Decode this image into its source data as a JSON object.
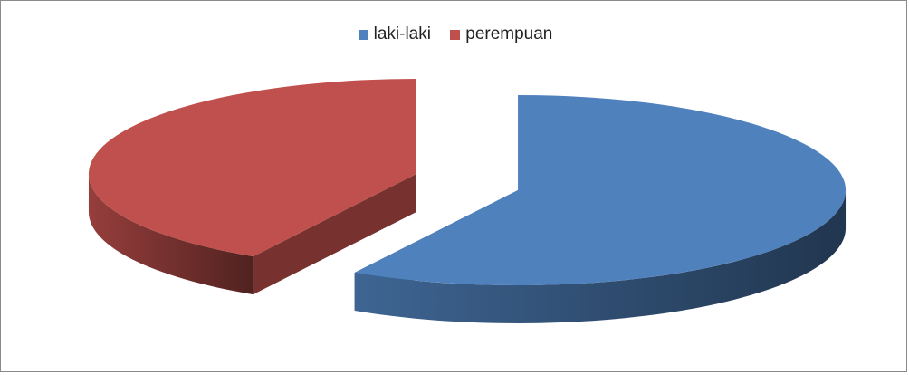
{
  "chart_data": {
    "type": "pie",
    "style": "3d-exploded",
    "title": "",
    "legend_position": "top",
    "series": [
      {
        "name": "laki-laki",
        "value": 58.3,
        "color": "#4f81bd"
      },
      {
        "name": "perempuan",
        "value": 41.7,
        "color": "#c0504d"
      }
    ]
  }
}
